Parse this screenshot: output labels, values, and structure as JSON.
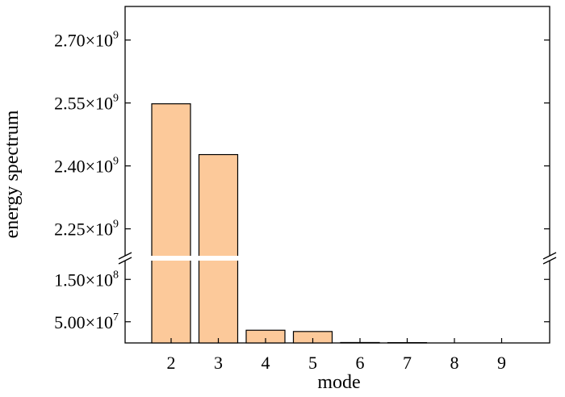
{
  "chart_data": {
    "type": "bar",
    "xlabel": "mode",
    "ylabel": "energy spectrum",
    "categories": [
      "2",
      "3",
      "4",
      "5",
      "6",
      "7",
      "8",
      "9"
    ],
    "values": [
      2548000000,
      2427000000,
      30000000,
      27000000,
      1000000,
      800000,
      0,
      0
    ],
    "broken_y_axis": true,
    "lower_segment": {
      "ylim": [
        0,
        200000000
      ],
      "ticks": [
        {
          "value": 50000000,
          "mantissa": "5.00",
          "exponent": "7"
        },
        {
          "value": 150000000,
          "mantissa": "1.50",
          "exponent": "8"
        }
      ]
    },
    "upper_segment": {
      "ylim": [
        2180000000,
        2780000000
      ],
      "ticks": [
        {
          "value": 2250000000,
          "mantissa": "2.25",
          "exponent": "9"
        },
        {
          "value": 2400000000,
          "mantissa": "2.40",
          "exponent": "9"
        },
        {
          "value": 2550000000,
          "mantissa": "2.55",
          "exponent": "9"
        },
        {
          "value": 2700000000,
          "mantissa": "2.70",
          "exponent": "9"
        }
      ]
    },
    "times_symbol": "×",
    "ten": "10",
    "bar_color": "#FCC99A",
    "bar_edge_color": "#000000"
  }
}
